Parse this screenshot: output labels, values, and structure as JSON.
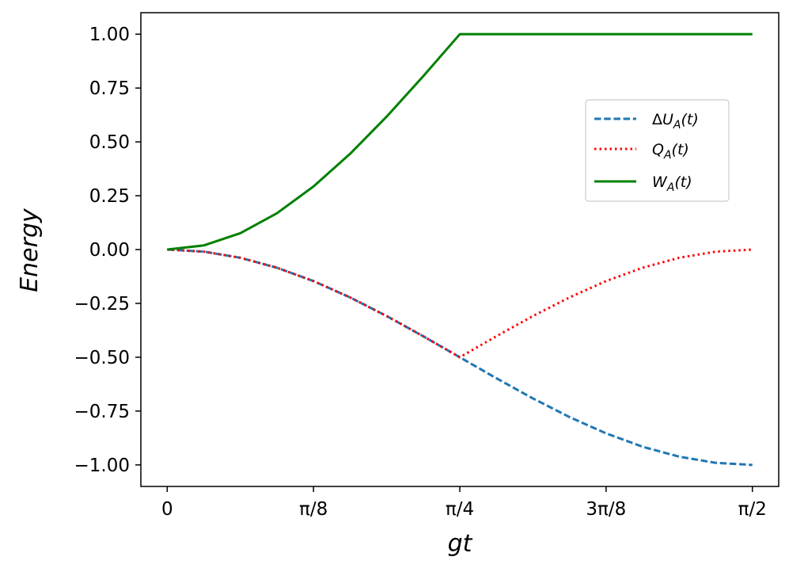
{
  "chart_data": {
    "type": "line",
    "xlabel": "gt",
    "ylabel": "Energy",
    "xlim": [
      -0.0707,
      1.6415
    ],
    "ylim": [
      -1.1,
      1.1
    ],
    "x_ticks": [
      {
        "value": 0,
        "label": "0"
      },
      {
        "value": 0.392699,
        "label": "π/8"
      },
      {
        "value": 0.785398,
        "label": "π/4"
      },
      {
        "value": 1.178097,
        "label": "3π/8"
      },
      {
        "value": 1.570796,
        "label": "π/2"
      }
    ],
    "y_ticks": [
      {
        "value": 1.0,
        "label": "1.00"
      },
      {
        "value": 0.75,
        "label": "0.75"
      },
      {
        "value": 0.5,
        "label": "0.50"
      },
      {
        "value": 0.25,
        "label": "0.25"
      },
      {
        "value": 0.0,
        "label": "0.00"
      },
      {
        "value": -0.25,
        "label": "−0.25"
      },
      {
        "value": -0.5,
        "label": "−0.50"
      },
      {
        "value": -0.75,
        "label": "−0.75"
      },
      {
        "value": -1.0,
        "label": "−1.00"
      }
    ],
    "x": [
      0,
      0.098175,
      0.19635,
      0.294524,
      0.392699,
      0.490874,
      0.589049,
      0.687223,
      0.785398,
      0.883573,
      0.981748,
      1.079922,
      1.178097,
      1.276272,
      1.374447,
      1.472622,
      1.570796
    ],
    "series": [
      {
        "name": "ΔU_A(t)",
        "color": "#1f77b4",
        "style": "dashed",
        "values": [
          0,
          -0.0096,
          -0.0381,
          -0.0843,
          -0.1464,
          -0.2222,
          -0.3087,
          -0.4025,
          -0.5,
          -0.5975,
          -0.6913,
          -0.7778,
          -0.8536,
          -0.9157,
          -0.9619,
          -0.9904,
          -1.0
        ]
      },
      {
        "name": "Q_A(t)",
        "color": "#ff0000",
        "style": "dotted",
        "values": [
          0,
          -0.0096,
          -0.0381,
          -0.0843,
          -0.1464,
          -0.2222,
          -0.3087,
          -0.4025,
          -0.5,
          -0.4025,
          -0.3087,
          -0.2222,
          -0.1464,
          -0.0843,
          -0.0381,
          -0.0096,
          0.0
        ]
      },
      {
        "name": "W_A(t)",
        "color": "#008000",
        "style": "solid",
        "values": [
          0,
          0.0192,
          0.0762,
          0.1686,
          0.2929,
          0.4445,
          0.6173,
          0.8049,
          1.0,
          1.0,
          1.0,
          1.0,
          1.0,
          1.0,
          1.0,
          1.0,
          1.0
        ]
      }
    ],
    "legend": {
      "placement": "center-right",
      "entries": [
        {
          "math_base": "ΔU",
          "math_sub": "A",
          "math_tail": "(t)"
        },
        {
          "math_base": "Q",
          "math_sub": "A",
          "math_tail": "(t)"
        },
        {
          "math_base": "W",
          "math_sub": "A",
          "math_tail": "(t)"
        }
      ]
    },
    "grid": false
  }
}
